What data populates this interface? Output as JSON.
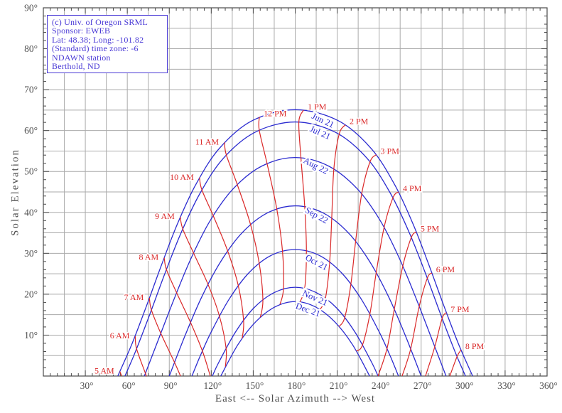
{
  "title_box": {
    "lines": [
      "(c) Univ. of Oregon SRML",
      "Sponsor: EWEB",
      "Lat: 48.38; Long: -101.82",
      "(Standard) time zone: -6",
      "NDAWN station",
      "Berthold, ND"
    ]
  },
  "axes": {
    "x": {
      "title": "East <-- Solar Azimuth --> West",
      "min": 0,
      "max": 360,
      "label_start": 30,
      "label_step": 30,
      "grid_step": 15,
      "tick_step": 5,
      "labels": [
        "30°",
        "60°",
        "90°",
        "120°",
        "150°",
        "180°",
        "210°",
        "240°",
        "270°",
        "300°",
        "330°",
        "360°"
      ]
    },
    "y": {
      "title": "Solar Elevation",
      "min": 0,
      "max": 90,
      "label_start": 10,
      "label_step": 10,
      "grid_step": 5,
      "tick_step": 2,
      "labels": [
        "10°",
        "20°",
        "30°",
        "40°",
        "50°",
        "60°",
        "70°",
        "80°",
        "90°"
      ]
    }
  },
  "chart_data": {
    "type": "line",
    "xlabel": "East <-- Solar Azimuth --> West",
    "ylabel": "Solar Elevation",
    "xlim": [
      0,
      360
    ],
    "ylim": [
      0,
      90
    ],
    "grid": true,
    "legend_position": "none",
    "colors": {
      "date_curves": "#2b2bd0",
      "hour_lines": "#da2828",
      "grid": "#aaaaaa",
      "frame": "#4a4a4a",
      "axis_text": "#4f4f4f",
      "info_box": "#4a3ad6"
    },
    "date_curves": [
      {
        "label": "Jun 21",
        "label_az": 199.6,
        "label_el": 62.3,
        "label_rot": 25,
        "points": [
          [
            53.2,
            0
          ],
          [
            63.5,
            8.0
          ],
          [
            73.9,
            17.3
          ],
          [
            84.4,
            27.1
          ],
          [
            95.6,
            37.0
          ],
          [
            108.8,
            46.7
          ],
          [
            125.7,
            55.6
          ],
          [
            149.2,
            62.4
          ],
          [
            180,
            65.1
          ],
          [
            210.8,
            62.4
          ],
          [
            234.3,
            55.6
          ],
          [
            251.2,
            46.7
          ],
          [
            264.4,
            37.0
          ],
          [
            275.6,
            27.1
          ],
          [
            286.1,
            17.3
          ],
          [
            296.5,
            8.0
          ],
          [
            306.8,
            0
          ]
        ]
      },
      {
        "label": "Jul 21",
        "label_az": 197.6,
        "label_el": 59.3,
        "label_rot": 24,
        "points": [
          [
            58.3,
            0
          ],
          [
            65.5,
            5.7
          ],
          [
            76.1,
            15.1
          ],
          [
            86.8,
            25.0
          ],
          [
            98.3,
            34.9
          ],
          [
            111.7,
            44.5
          ],
          [
            128.6,
            53.2
          ],
          [
            151.4,
            59.6
          ],
          [
            180,
            62.1
          ],
          [
            208.6,
            59.6
          ],
          [
            231.4,
            53.2
          ],
          [
            248.3,
            44.5
          ],
          [
            261.7,
            34.9
          ],
          [
            273.2,
            25.0
          ],
          [
            283.9,
            15.1
          ],
          [
            294.5,
            5.7
          ],
          [
            301.7,
            0
          ]
        ]
      },
      {
        "label": "Aug 22",
        "label_az": 194.5,
        "label_el": 51.2,
        "label_rot": 27,
        "points": [
          [
            72.2,
            0
          ],
          [
            82.1,
            8.8
          ],
          [
            93.3,
            18.7
          ],
          [
            105.2,
            28.5
          ],
          [
            118.9,
            37.8
          ],
          [
            135.5,
            45.7
          ],
          [
            156.0,
            51.3
          ],
          [
            180,
            53.4
          ],
          [
            204.0,
            51.3
          ],
          [
            224.5,
            45.7
          ],
          [
            241.1,
            37.8
          ],
          [
            254.8,
            28.5
          ],
          [
            266.7,
            18.7
          ],
          [
            277.9,
            8.8
          ],
          [
            287.8,
            0
          ]
        ]
      },
      {
        "label": "Sep 22",
        "label_az": 195.0,
        "label_el": 39.1,
        "label_rot": 29,
        "points": [
          [
            90,
            0
          ],
          [
            101.3,
            9.9
          ],
          [
            113.3,
            19.4
          ],
          [
            126.8,
            28.0
          ],
          [
            142.3,
            35.1
          ],
          [
            160.3,
            39.9
          ],
          [
            180,
            41.6
          ],
          [
            199.7,
            39.9
          ],
          [
            217.7,
            35.1
          ],
          [
            233.2,
            28.0
          ],
          [
            246.7,
            19.4
          ],
          [
            258.7,
            9.9
          ],
          [
            270,
            0
          ]
        ]
      },
      {
        "label": "Oct 21",
        "label_az": 195.0,
        "label_el": 27.6,
        "label_rot": 28,
        "points": [
          [
            106.2,
            0
          ],
          [
            112.1,
            4.9
          ],
          [
            120.0,
            10.8
          ],
          [
            132.8,
            18.8
          ],
          [
            147.1,
            25.3
          ],
          [
            162.9,
            29.5
          ],
          [
            180,
            30.9
          ],
          [
            197.1,
            29.5
          ],
          [
            212.9,
            25.3
          ],
          [
            227.2,
            18.8
          ],
          [
            240.0,
            10.8
          ],
          [
            247.9,
            4.9
          ],
          [
            253.8,
            0
          ]
        ]
      },
      {
        "label": "Nov 21",
        "label_az": 194.0,
        "label_el": 18.9,
        "label_rot": 24,
        "points": [
          [
            120.8,
            0
          ],
          [
            125.3,
            3.3
          ],
          [
            137.4,
            10.8
          ],
          [
            150.6,
            16.7
          ],
          [
            165.0,
            20.4
          ],
          [
            180,
            21.7
          ],
          [
            195.0,
            20.4
          ],
          [
            209.4,
            16.7
          ],
          [
            222.6,
            10.8
          ],
          [
            234.7,
            3.3
          ],
          [
            239.2,
            0
          ]
        ]
      },
      {
        "label": "Dec 21",
        "label_az": 188.9,
        "label_el": 16.0,
        "label_rot": 20,
        "points": [
          [
            126.8,
            0
          ],
          [
            139.1,
            7.7
          ],
          [
            151.9,
            13.3
          ],
          [
            165.6,
            16.9
          ],
          [
            180,
            18.2
          ],
          [
            194.4,
            16.9
          ],
          [
            208.1,
            13.3
          ],
          [
            220.9,
            7.7
          ],
          [
            233.2,
            0
          ]
        ]
      }
    ],
    "hour_lines": [
      {
        "label": "5 AM",
        "side": "left",
        "points": [
          [
            54.7,
            1.1
          ],
          [
            56.0,
            0
          ]
        ]
      },
      {
        "label": "6 AM",
        "side": "left",
        "points": [
          [
            65.7,
            9.7
          ],
          [
            66.6,
            6.7
          ],
          [
            72.9,
            0.7
          ],
          [
            73.5,
            0
          ]
        ]
      },
      {
        "label": "7 AM",
        "side": "left",
        "points": [
          [
            75.8,
            19.1
          ],
          [
            77.2,
            16.2
          ],
          [
            84.0,
            10.4
          ],
          [
            93.8,
            3.3
          ],
          [
            98.0,
            0
          ]
        ]
      },
      {
        "label": "8 AM",
        "side": "left",
        "points": [
          [
            86.4,
            28.9
          ],
          [
            88.0,
            26.0
          ],
          [
            95.2,
            20.4
          ],
          [
            105.2,
            13.1
          ],
          [
            113.7,
            6.1
          ],
          [
            119.3,
            0
          ]
        ]
      },
      {
        "label": "9 AM",
        "side": "left",
        "points": [
          [
            97.9,
            38.9
          ],
          [
            99.6,
            36.0
          ],
          [
            107.3,
            30.1
          ],
          [
            117.7,
            22.4
          ],
          [
            125.8,
            14.7
          ],
          [
            130.6,
            6.8
          ],
          [
            130.1,
            2.3
          ]
        ]
      },
      {
        "label": "10 AM",
        "side": "left",
        "points": [
          [
            111.6,
            48.5
          ],
          [
            113.3,
            45.5
          ],
          [
            121.4,
            39.2
          ],
          [
            131.7,
            30.6
          ],
          [
            139.3,
            22.1
          ],
          [
            143.1,
            13.6
          ],
          [
            142.1,
            9.2
          ]
        ]
      },
      {
        "label": "11 AM",
        "side": "left",
        "points": [
          [
            129.5,
            57.1
          ],
          [
            130.8,
            54.0
          ],
          [
            138.6,
            46.8
          ],
          [
            148.1,
            37.0
          ],
          [
            154.3,
            27.5
          ],
          [
            156.9,
            18.6
          ],
          [
            155.1,
            14.4
          ]
        ]
      },
      {
        "label": "12 PM",
        "side": "right",
        "points": [
          [
            154.4,
            63.3
          ],
          [
            154.3,
            60.1
          ],
          [
            159.9,
            51.9
          ],
          [
            166.8,
            40.9
          ],
          [
            170.9,
            30.5
          ],
          [
            171.6,
            21.3
          ],
          [
            169.1,
            17.5
          ]
        ]
      },
      {
        "label": "1 PM",
        "side": "right",
        "points": [
          [
            185.9,
            65.0
          ],
          [
            182.6,
            62.1
          ],
          [
            184.1,
            53.3
          ],
          [
            186.8,
            41.4
          ],
          [
            188.0,
            30.6
          ],
          [
            186.8,
            21.5
          ],
          [
            183.4,
            18.1
          ]
        ]
      },
      {
        "label": "2 PM",
        "side": "right",
        "points": [
          [
            215.8,
            61.4
          ],
          [
            211.4,
            59.1
          ],
          [
            207.6,
            50.6
          ],
          [
            206.1,
            38.6
          ],
          [
            204.6,
            27.8
          ],
          [
            201.6,
            19.0
          ],
          [
            197.8,
            16.3
          ]
        ]
      },
      {
        "label": "3 PM",
        "side": "right",
        "points": [
          [
            237.9,
            54.1
          ],
          [
            233.4,
            52.3
          ],
          [
            227.5,
            44.5
          ],
          [
            223.2,
            33.0
          ],
          [
            219.8,
            22.5
          ],
          [
            215.4,
            14.3
          ],
          [
            211.3,
            12.1
          ]
        ]
      },
      {
        "label": "4 PM",
        "side": "right",
        "points": [
          [
            253.9,
            45.0
          ],
          [
            249.9,
            43.6
          ],
          [
            243.5,
            36.3
          ],
          [
            237.9,
            25.3
          ],
          [
            233.4,
            15.2
          ],
          [
            228.1,
            7.6
          ],
          [
            223.8,
            6.1
          ]
        ]
      },
      {
        "label": "5 PM",
        "side": "right",
        "points": [
          [
            266.5,
            35.2
          ],
          [
            263.0,
            33.9
          ],
          [
            256.9,
            26.9
          ],
          [
            250.8,
            16.3
          ],
          [
            245.6,
            6.7
          ],
          [
            239.2,
            0
          ]
        ]
      },
      {
        "label": "6 PM",
        "side": "right",
        "points": [
          [
            277.6,
            25.2
          ],
          [
            274.4,
            23.9
          ],
          [
            268.6,
            17.0
          ],
          [
            262.5,
            6.6
          ],
          [
            256.4,
            0
          ]
        ]
      },
      {
        "label": "7 PM",
        "side": "right",
        "points": [
          [
            288.0,
            15.5
          ],
          [
            285.0,
            14.1
          ],
          [
            279.7,
            7.1
          ],
          [
            273.1,
            0
          ]
        ]
      },
      {
        "label": "8 PM",
        "side": "right",
        "points": [
          [
            298.5,
            6.4
          ],
          [
            295.7,
            4.8
          ],
          [
            290.5,
            0
          ]
        ]
      }
    ]
  }
}
